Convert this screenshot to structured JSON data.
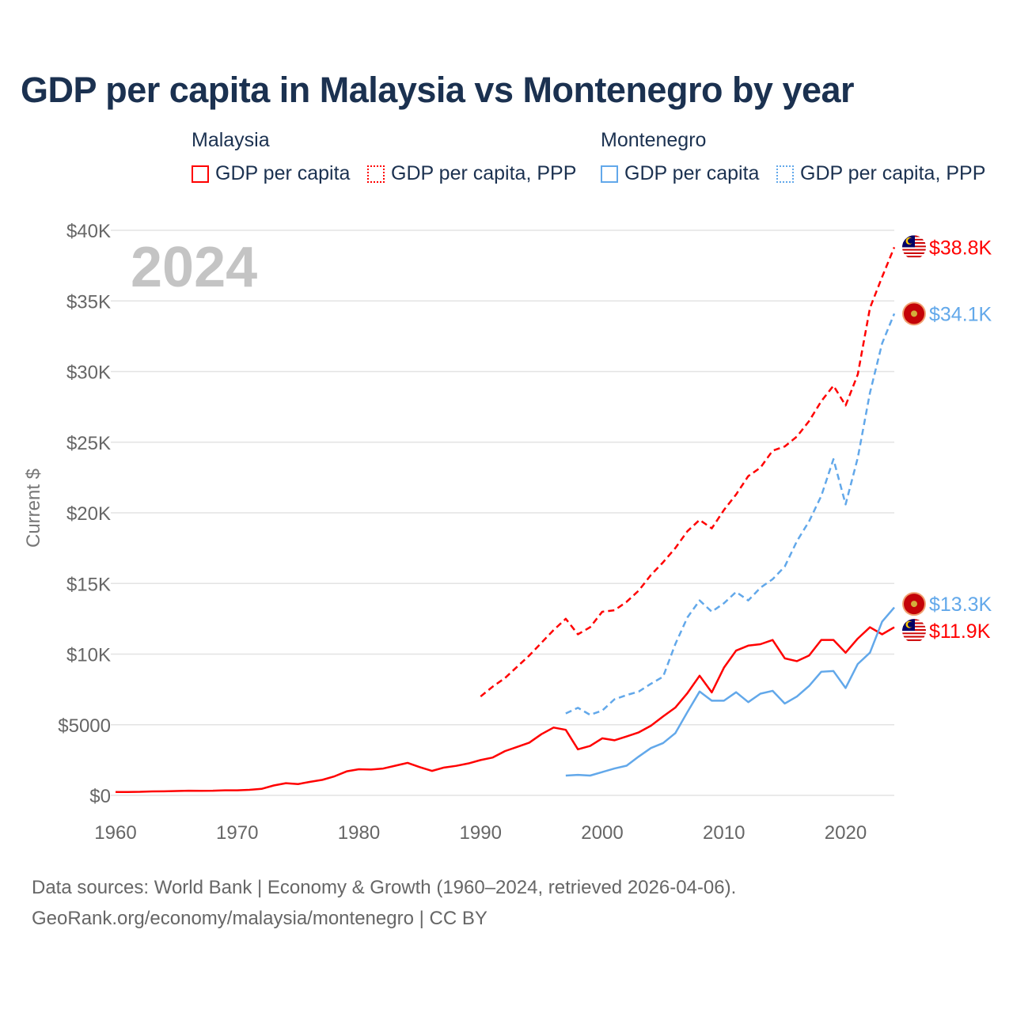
{
  "title": "GDP per capita in Malaysia vs Montenegro by year",
  "legend": {
    "groups": [
      {
        "name": "Malaysia",
        "color": "#ff0000",
        "items": [
          "GDP per capita",
          "GDP per capita, PPP"
        ]
      },
      {
        "name": "Montenegro",
        "color": "#62a8ea",
        "items": [
          "GDP per capita",
          "GDP per capita, PPP"
        ]
      }
    ]
  },
  "footer": {
    "line1": "Data sources: World Bank | Economy & Growth (1960–2024, retrieved 2026-04-06).",
    "line2": "GeoRank.org/economy/malaysia/montenegro | CC BY"
  },
  "chart_data": {
    "type": "line",
    "title": "GDP per capita in Malaysia vs Montenegro by year",
    "year_label": "2024",
    "xlabel": "",
    "ylabel": "Current $",
    "xlim": [
      1960,
      2024
    ],
    "ylim": [
      0,
      40000
    ],
    "x_ticks": [
      "1960",
      "1970",
      "1980",
      "1990",
      "2000",
      "2010",
      "2020"
    ],
    "x_tick_values": [
      1960,
      1970,
      1980,
      1990,
      2000,
      2010,
      2020
    ],
    "y_ticks": [
      "$0",
      "$5000",
      "$10K",
      "$15K",
      "$20K",
      "$25K",
      "$30K",
      "$35K",
      "$40K"
    ],
    "y_tick_values": [
      0,
      5000,
      10000,
      15000,
      20000,
      25000,
      30000,
      35000,
      40000
    ],
    "grid": true,
    "series": [
      {
        "name": "Malaysia GDP per capita",
        "color": "#ff0000",
        "dash": false,
        "start": 1960,
        "end_label": "$11.9K",
        "flag": "malaysia",
        "values": [
          240,
          240,
          250,
          280,
          290,
          310,
          330,
          320,
          330,
          360,
          360,
          390,
          460,
          700,
          860,
          800,
          960,
          1100,
          1350,
          1700,
          1850,
          1830,
          1900,
          2100,
          2300,
          2000,
          1730,
          1970,
          2090,
          2260,
          2500,
          2680,
          3130,
          3430,
          3730,
          4330,
          4800,
          4640,
          3260,
          3500,
          4040,
          3900,
          4170,
          4460,
          4930,
          5590,
          6210,
          7240,
          8470,
          7290,
          9040,
          10250,
          10600,
          10700,
          11000,
          9700,
          9500,
          9900,
          11000,
          11000,
          10100,
          11100,
          11900,
          11400,
          11900
        ]
      },
      {
        "name": "Malaysia GDP per capita, PPP",
        "color": "#ff0000",
        "dash": true,
        "start": 1990,
        "end_label": "$38.8K",
        "flag": "malaysia",
        "values": [
          7000,
          7700,
          8300,
          9100,
          9900,
          10800,
          11700,
          12500,
          11400,
          11900,
          13000,
          13100,
          13700,
          14500,
          15600,
          16500,
          17500,
          18700,
          19500,
          18900,
          20200,
          21300,
          22600,
          23200,
          24400,
          24700,
          25400,
          26500,
          27900,
          29000,
          27600,
          29800,
          34500,
          36700,
          38800
        ]
      },
      {
        "name": "Montenegro GDP per capita",
        "color": "#62a8ea",
        "dash": false,
        "start": 1997,
        "end_label": "$13.3K",
        "flag": "montenegro",
        "values": [
          1400,
          1450,
          1400,
          1650,
          1900,
          2100,
          2750,
          3350,
          3700,
          4400,
          5900,
          7350,
          6700,
          6700,
          7300,
          6600,
          7200,
          7400,
          6500,
          7000,
          7750,
          8750,
          8800,
          7600,
          9300,
          10100,
          12300,
          13300
        ]
      },
      {
        "name": "Montenegro GDP per capita, PPP",
        "color": "#62a8ea",
        "dash": true,
        "start": 1997,
        "end_label": "$34.1K",
        "flag": "montenegro",
        "values": [
          5800,
          6200,
          5700,
          6000,
          6800,
          7100,
          7350,
          7900,
          8400,
          10700,
          12600,
          13800,
          13000,
          13600,
          14400,
          13800,
          14700,
          15300,
          16200,
          18000,
          19400,
          21200,
          23800,
          20600,
          23900,
          28500,
          32000,
          34100
        ]
      }
    ]
  }
}
